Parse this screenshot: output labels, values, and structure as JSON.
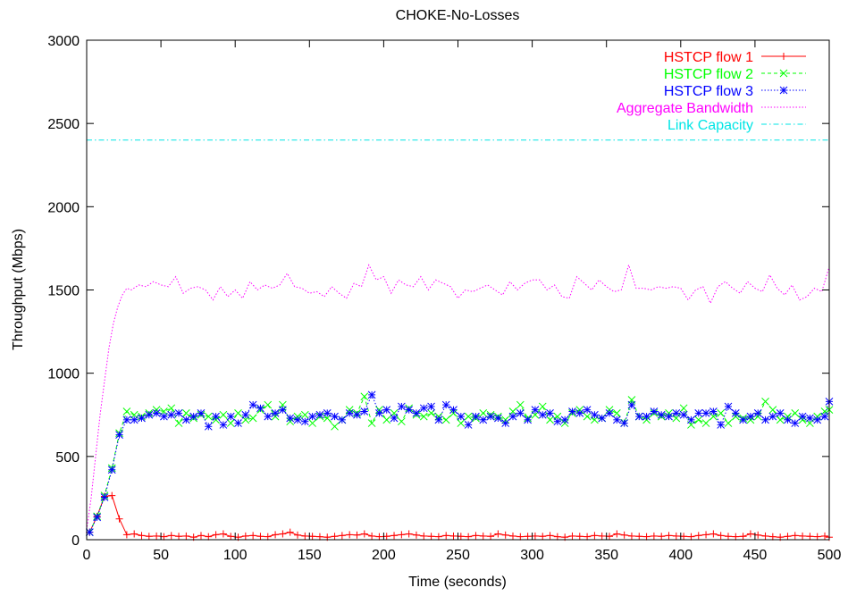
{
  "chart_data": {
    "type": "line",
    "title": "CHOKE-No-Losses",
    "xlabel": "Time (seconds)",
    "ylabel": "Throughput (Mbps)",
    "xlim": [
      0,
      500
    ],
    "ylim": [
      0,
      3000
    ],
    "xticks": [
      0,
      50,
      100,
      150,
      200,
      250,
      300,
      350,
      400,
      450,
      500
    ],
    "yticks": [
      0,
      500,
      1000,
      1500,
      2000,
      2500,
      3000
    ],
    "grid": false,
    "legend_position": "top-right",
    "series": [
      {
        "name": "HSTCP flow 1",
        "color": "#ff0000",
        "style": "solid",
        "marker": "plus",
        "x": [
          2,
          7,
          12,
          17,
          22,
          27,
          32,
          37,
          42,
          47,
          52,
          57,
          62,
          67,
          72,
          77,
          82,
          87,
          92,
          97,
          102,
          107,
          112,
          117,
          122,
          127,
          132,
          137,
          142,
          147,
          152,
          157,
          162,
          167,
          172,
          177,
          182,
          187,
          192,
          197,
          202,
          207,
          212,
          217,
          222,
          227,
          232,
          237,
          242,
          247,
          252,
          257,
          262,
          267,
          272,
          277,
          282,
          287,
          292,
          297,
          302,
          307,
          312,
          317,
          322,
          327,
          332,
          337,
          342,
          347,
          352,
          357,
          362,
          367,
          372,
          377,
          382,
          387,
          392,
          397,
          402,
          407,
          412,
          417,
          422,
          427,
          432,
          437,
          442,
          447,
          452,
          457,
          462,
          467,
          472,
          477,
          482,
          487,
          492,
          497,
          500
        ],
        "y": [
          45,
          140,
          260,
          265,
          125,
          30,
          35,
          25,
          20,
          22,
          18,
          25,
          20,
          22,
          15,
          25,
          18,
          30,
          35,
          20,
          15,
          22,
          25,
          20,
          18,
          30,
          35,
          45,
          28,
          22,
          20,
          18,
          15,
          20,
          25,
          30,
          28,
          35,
          22,
          18,
          20,
          25,
          30,
          35,
          28,
          22,
          20,
          18,
          25,
          22,
          20,
          18,
          25,
          22,
          20,
          35,
          28,
          22,
          18,
          20,
          22,
          20,
          25,
          18,
          15,
          22,
          20,
          18,
          25,
          22,
          20,
          35,
          28,
          22,
          20,
          18,
          22,
          20,
          25,
          22,
          20,
          18,
          25,
          30,
          35,
          25,
          20,
          18,
          20,
          35,
          28,
          22,
          18,
          15,
          20,
          25,
          22,
          20,
          18,
          22,
          15
        ]
      },
      {
        "name": "HSTCP flow 2",
        "color": "#00ff00",
        "style": "dashed",
        "marker": "cross",
        "x": [
          2,
          7,
          12,
          17,
          22,
          27,
          32,
          37,
          42,
          47,
          52,
          57,
          62,
          67,
          72,
          77,
          82,
          87,
          92,
          97,
          102,
          107,
          112,
          117,
          122,
          127,
          132,
          137,
          142,
          147,
          152,
          157,
          162,
          167,
          172,
          177,
          182,
          187,
          192,
          197,
          202,
          207,
          212,
          217,
          222,
          227,
          232,
          237,
          242,
          247,
          252,
          257,
          262,
          267,
          272,
          277,
          282,
          287,
          292,
          297,
          302,
          307,
          312,
          317,
          322,
          327,
          332,
          337,
          342,
          347,
          352,
          357,
          362,
          367,
          372,
          377,
          382,
          387,
          392,
          397,
          402,
          407,
          412,
          417,
          422,
          427,
          432,
          437,
          442,
          447,
          452,
          457,
          462,
          467,
          472,
          477,
          482,
          487,
          492,
          497,
          500
        ],
        "y": [
          45,
          140,
          265,
          430,
          640,
          770,
          750,
          740,
          760,
          780,
          770,
          790,
          700,
          760,
          730,
          750,
          740,
          720,
          750,
          700,
          760,
          720,
          730,
          780,
          810,
          740,
          810,
          710,
          740,
          750,
          700,
          740,
          730,
          680,
          720,
          780,
          760,
          860,
          700,
          780,
          720,
          760,
          710,
          790,
          750,
          740,
          760,
          740,
          720,
          760,
          700,
          740,
          730,
          760,
          750,
          740,
          720,
          770,
          810,
          730,
          750,
          800,
          720,
          740,
          700,
          760,
          780,
          740,
          720,
          730,
          780,
          760,
          700,
          840,
          740,
          720,
          760,
          740,
          760,
          730,
          790,
          690,
          720,
          700,
          740,
          760,
          700,
          740,
          730,
          720,
          740,
          830,
          780,
          720,
          740,
          760,
          720,
          700,
          740,
          770,
          780
        ]
      },
      {
        "name": "HSTCP flow 3",
        "color": "#0000ff",
        "style": "dotted",
        "marker": "star",
        "x": [
          2,
          7,
          12,
          17,
          22,
          27,
          32,
          37,
          42,
          47,
          52,
          57,
          62,
          67,
          72,
          77,
          82,
          87,
          92,
          97,
          102,
          107,
          112,
          117,
          122,
          127,
          132,
          137,
          142,
          147,
          152,
          157,
          162,
          167,
          172,
          177,
          182,
          187,
          192,
          197,
          202,
          207,
          212,
          217,
          222,
          227,
          232,
          237,
          242,
          247,
          252,
          257,
          262,
          267,
          272,
          277,
          282,
          287,
          292,
          297,
          302,
          307,
          312,
          317,
          322,
          327,
          332,
          337,
          342,
          347,
          352,
          357,
          362,
          367,
          372,
          377,
          382,
          387,
          392,
          397,
          402,
          407,
          412,
          417,
          422,
          427,
          432,
          437,
          442,
          447,
          452,
          457,
          462,
          467,
          472,
          477,
          482,
          487,
          492,
          497,
          500
        ],
        "y": [
          45,
          135,
          255,
          420,
          630,
          720,
          720,
          730,
          750,
          760,
          740,
          750,
          760,
          720,
          740,
          760,
          680,
          740,
          690,
          740,
          700,
          750,
          810,
          790,
          740,
          760,
          780,
          730,
          720,
          710,
          740,
          750,
          760,
          740,
          720,
          760,
          750,
          770,
          870,
          760,
          780,
          730,
          800,
          780,
          760,
          790,
          800,
          720,
          810,
          780,
          740,
          690,
          740,
          720,
          740,
          730,
          700,
          740,
          760,
          720,
          780,
          750,
          760,
          710,
          720,
          770,
          760,
          780,
          750,
          730,
          760,
          720,
          700,
          810,
          740,
          740,
          770,
          750,
          740,
          760,
          750,
          720,
          760,
          760,
          770,
          690,
          800,
          760,
          720,
          740,
          760,
          720,
          740,
          760,
          720,
          700,
          740,
          730,
          720,
          740,
          830
        ]
      },
      {
        "name": "Aggregate Bandwidth",
        "color": "#ff00ff",
        "style": "dotted",
        "marker": "none",
        "x": [
          0,
          3,
          6,
          9,
          12,
          15,
          18,
          21,
          24,
          27,
          30,
          35,
          40,
          45,
          50,
          55,
          60,
          65,
          70,
          75,
          80,
          85,
          90,
          95,
          100,
          105,
          110,
          115,
          120,
          125,
          130,
          135,
          140,
          145,
          150,
          155,
          160,
          165,
          170,
          175,
          180,
          185,
          190,
          195,
          200,
          205,
          210,
          215,
          220,
          225,
          230,
          235,
          240,
          245,
          250,
          255,
          260,
          265,
          270,
          275,
          280,
          285,
          290,
          295,
          300,
          305,
          310,
          315,
          320,
          325,
          330,
          335,
          340,
          345,
          350,
          355,
          360,
          365,
          370,
          375,
          380,
          385,
          390,
          395,
          400,
          405,
          410,
          415,
          420,
          425,
          430,
          435,
          440,
          445,
          450,
          455,
          460,
          465,
          470,
          475,
          480,
          485,
          490,
          495,
          500
        ],
        "y": [
          60,
          250,
          500,
          750,
          950,
          1150,
          1300,
          1400,
          1470,
          1510,
          1500,
          1530,
          1520,
          1550,
          1530,
          1520,
          1580,
          1480,
          1510,
          1520,
          1500,
          1440,
          1520,
          1460,
          1500,
          1450,
          1550,
          1500,
          1530,
          1510,
          1530,
          1600,
          1520,
          1510,
          1480,
          1490,
          1460,
          1520,
          1480,
          1450,
          1540,
          1520,
          1650,
          1560,
          1580,
          1480,
          1560,
          1530,
          1520,
          1580,
          1500,
          1560,
          1540,
          1520,
          1450,
          1500,
          1490,
          1510,
          1530,
          1500,
          1470,
          1550,
          1500,
          1540,
          1560,
          1560,
          1500,
          1530,
          1460,
          1450,
          1580,
          1540,
          1500,
          1560,
          1520,
          1490,
          1500,
          1650,
          1510,
          1510,
          1500,
          1520,
          1510,
          1520,
          1510,
          1440,
          1500,
          1520,
          1420,
          1520,
          1550,
          1510,
          1480,
          1550,
          1510,
          1490,
          1590,
          1510,
          1470,
          1530,
          1440,
          1460,
          1510,
          1490,
          1640
        ]
      },
      {
        "name": "Link Capacity",
        "color": "#00e5e5",
        "style": "dash-dot",
        "marker": "none",
        "x": [
          0,
          500
        ],
        "y": [
          2400,
          2400
        ]
      }
    ]
  }
}
